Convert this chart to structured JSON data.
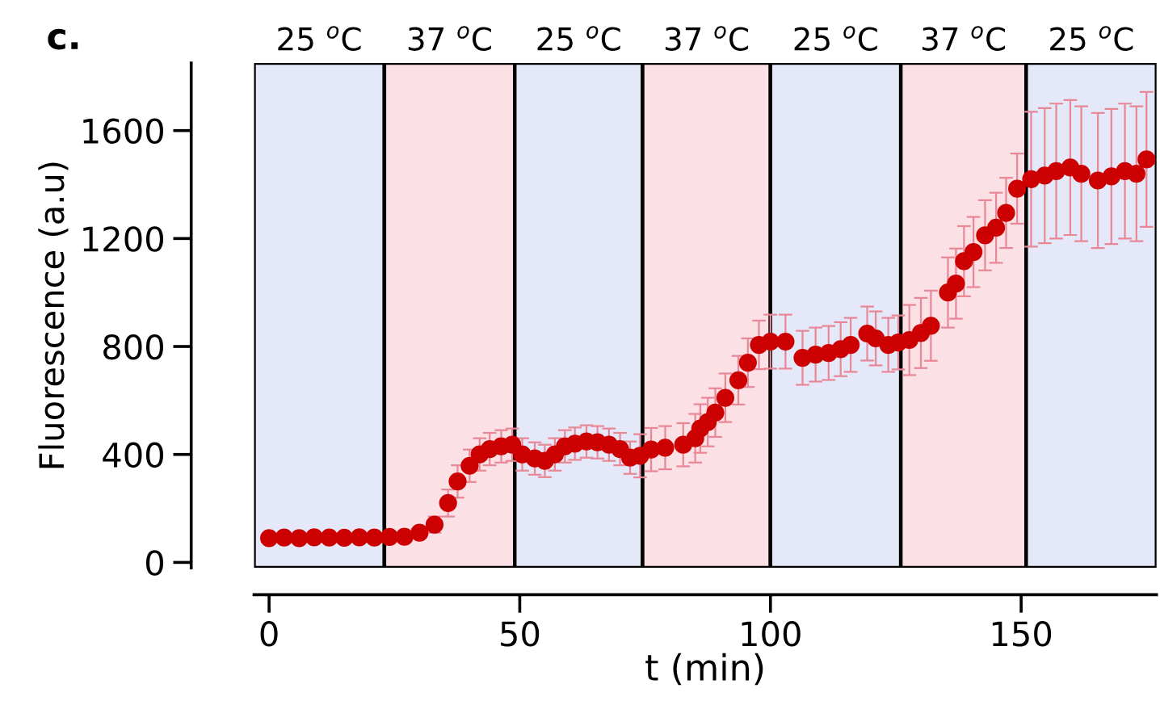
{
  "chart_data": {
    "type": "scatter",
    "title": "c.",
    "xlabel": "t (min)",
    "ylabel": "Fluorescence (a.u)",
    "xlim": [
      -3,
      177
    ],
    "ylim": [
      -20,
      1850
    ],
    "xticks": [
      0,
      50,
      100,
      150
    ],
    "yticks": [
      0,
      400,
      800,
      1200,
      1600
    ],
    "marker": "circle",
    "grid": false,
    "legend": false,
    "bands": [
      {
        "axis": "x",
        "from": -3,
        "to": 23,
        "label": "25 $^{o}$C",
        "color": "#e5e8f8"
      },
      {
        "axis": "x",
        "from": 23,
        "to": 49,
        "label": "37 $^{o}$C",
        "color": "#fbe0e5"
      },
      {
        "axis": "x",
        "from": 49,
        "to": 74.5,
        "label": "25 $^{o}$C",
        "color": "#e5e8f8"
      },
      {
        "axis": "x",
        "from": 74.5,
        "to": 100,
        "label": "37 $^{o}$C",
        "color": "#fbe0e5"
      },
      {
        "axis": "x",
        "from": 100,
        "to": 126,
        "label": "25 $^{o}$C",
        "color": "#e5e8f8"
      },
      {
        "axis": "x",
        "from": 126,
        "to": 151,
        "label": "37 $^{o}$C",
        "color": "#fbe0e5"
      },
      {
        "axis": "x",
        "from": 151,
        "to": 177,
        "label": "25 $^{o}$C",
        "color": "#e5e8f8"
      }
    ],
    "series": [
      {
        "color": "#cc0000",
        "x": [
          0,
          3,
          6,
          9,
          12,
          15,
          18,
          21,
          24,
          27,
          30,
          33,
          35.7,
          37.6,
          40,
          42,
          44,
          46.3,
          48.5,
          50.5,
          53,
          55,
          57,
          59,
          61,
          63.3,
          65.5,
          67.8,
          70,
          72,
          74,
          76.2,
          79,
          82.6,
          85,
          86,
          87.5,
          89,
          91,
          93.6,
          95.5,
          97.7,
          100,
          103,
          106.4,
          109,
          111.6,
          114,
          116,
          119.3,
          121,
          123.5,
          125.5,
          127.7,
          130,
          132,
          135.4,
          137,
          138.6,
          140.5,
          142.8,
          145,
          147,
          149.2,
          152,
          154.7,
          157,
          159.8,
          162,
          165.3,
          168,
          170.7,
          173,
          175
        ],
        "values": [
          90,
          92,
          90,
          93,
          92,
          91,
          93,
          92,
          94,
          95,
          110,
          140,
          220,
          300,
          358,
          400,
          420,
          430,
          436,
          400,
          385,
          376,
          400,
          430,
          440,
          448,
          445,
          436,
          420,
          388,
          395,
          418,
          425,
          436,
          460,
          496,
          520,
          555,
          610,
          675,
          740,
          806,
          818,
          818,
          758,
          770,
          776,
          790,
          806,
          848,
          830,
          806,
          815,
          824,
          850,
          877,
          1000,
          1033,
          1116,
          1150,
          1212,
          1240,
          1295,
          1385,
          1420,
          1433,
          1450,
          1463,
          1440,
          1415,
          1430,
          1450,
          1440,
          1493
        ],
        "errors": [
          null,
          null,
          null,
          null,
          null,
          null,
          null,
          null,
          null,
          null,
          null,
          30,
          50,
          60,
          60,
          60,
          60,
          60,
          60,
          60,
          60,
          60,
          60,
          60,
          60,
          60,
          60,
          60,
          60,
          60,
          80,
          80,
          80,
          80,
          90,
          90,
          90,
          90,
          90,
          90,
          90,
          90,
          100,
          100,
          100,
          100,
          100,
          100,
          100,
          100,
          100,
          100,
          100,
          130,
          130,
          130,
          130,
          130,
          130,
          130,
          130,
          130,
          130,
          130,
          250,
          250,
          250,
          250,
          250,
          250,
          250,
          250,
          250,
          250
        ]
      }
    ]
  }
}
